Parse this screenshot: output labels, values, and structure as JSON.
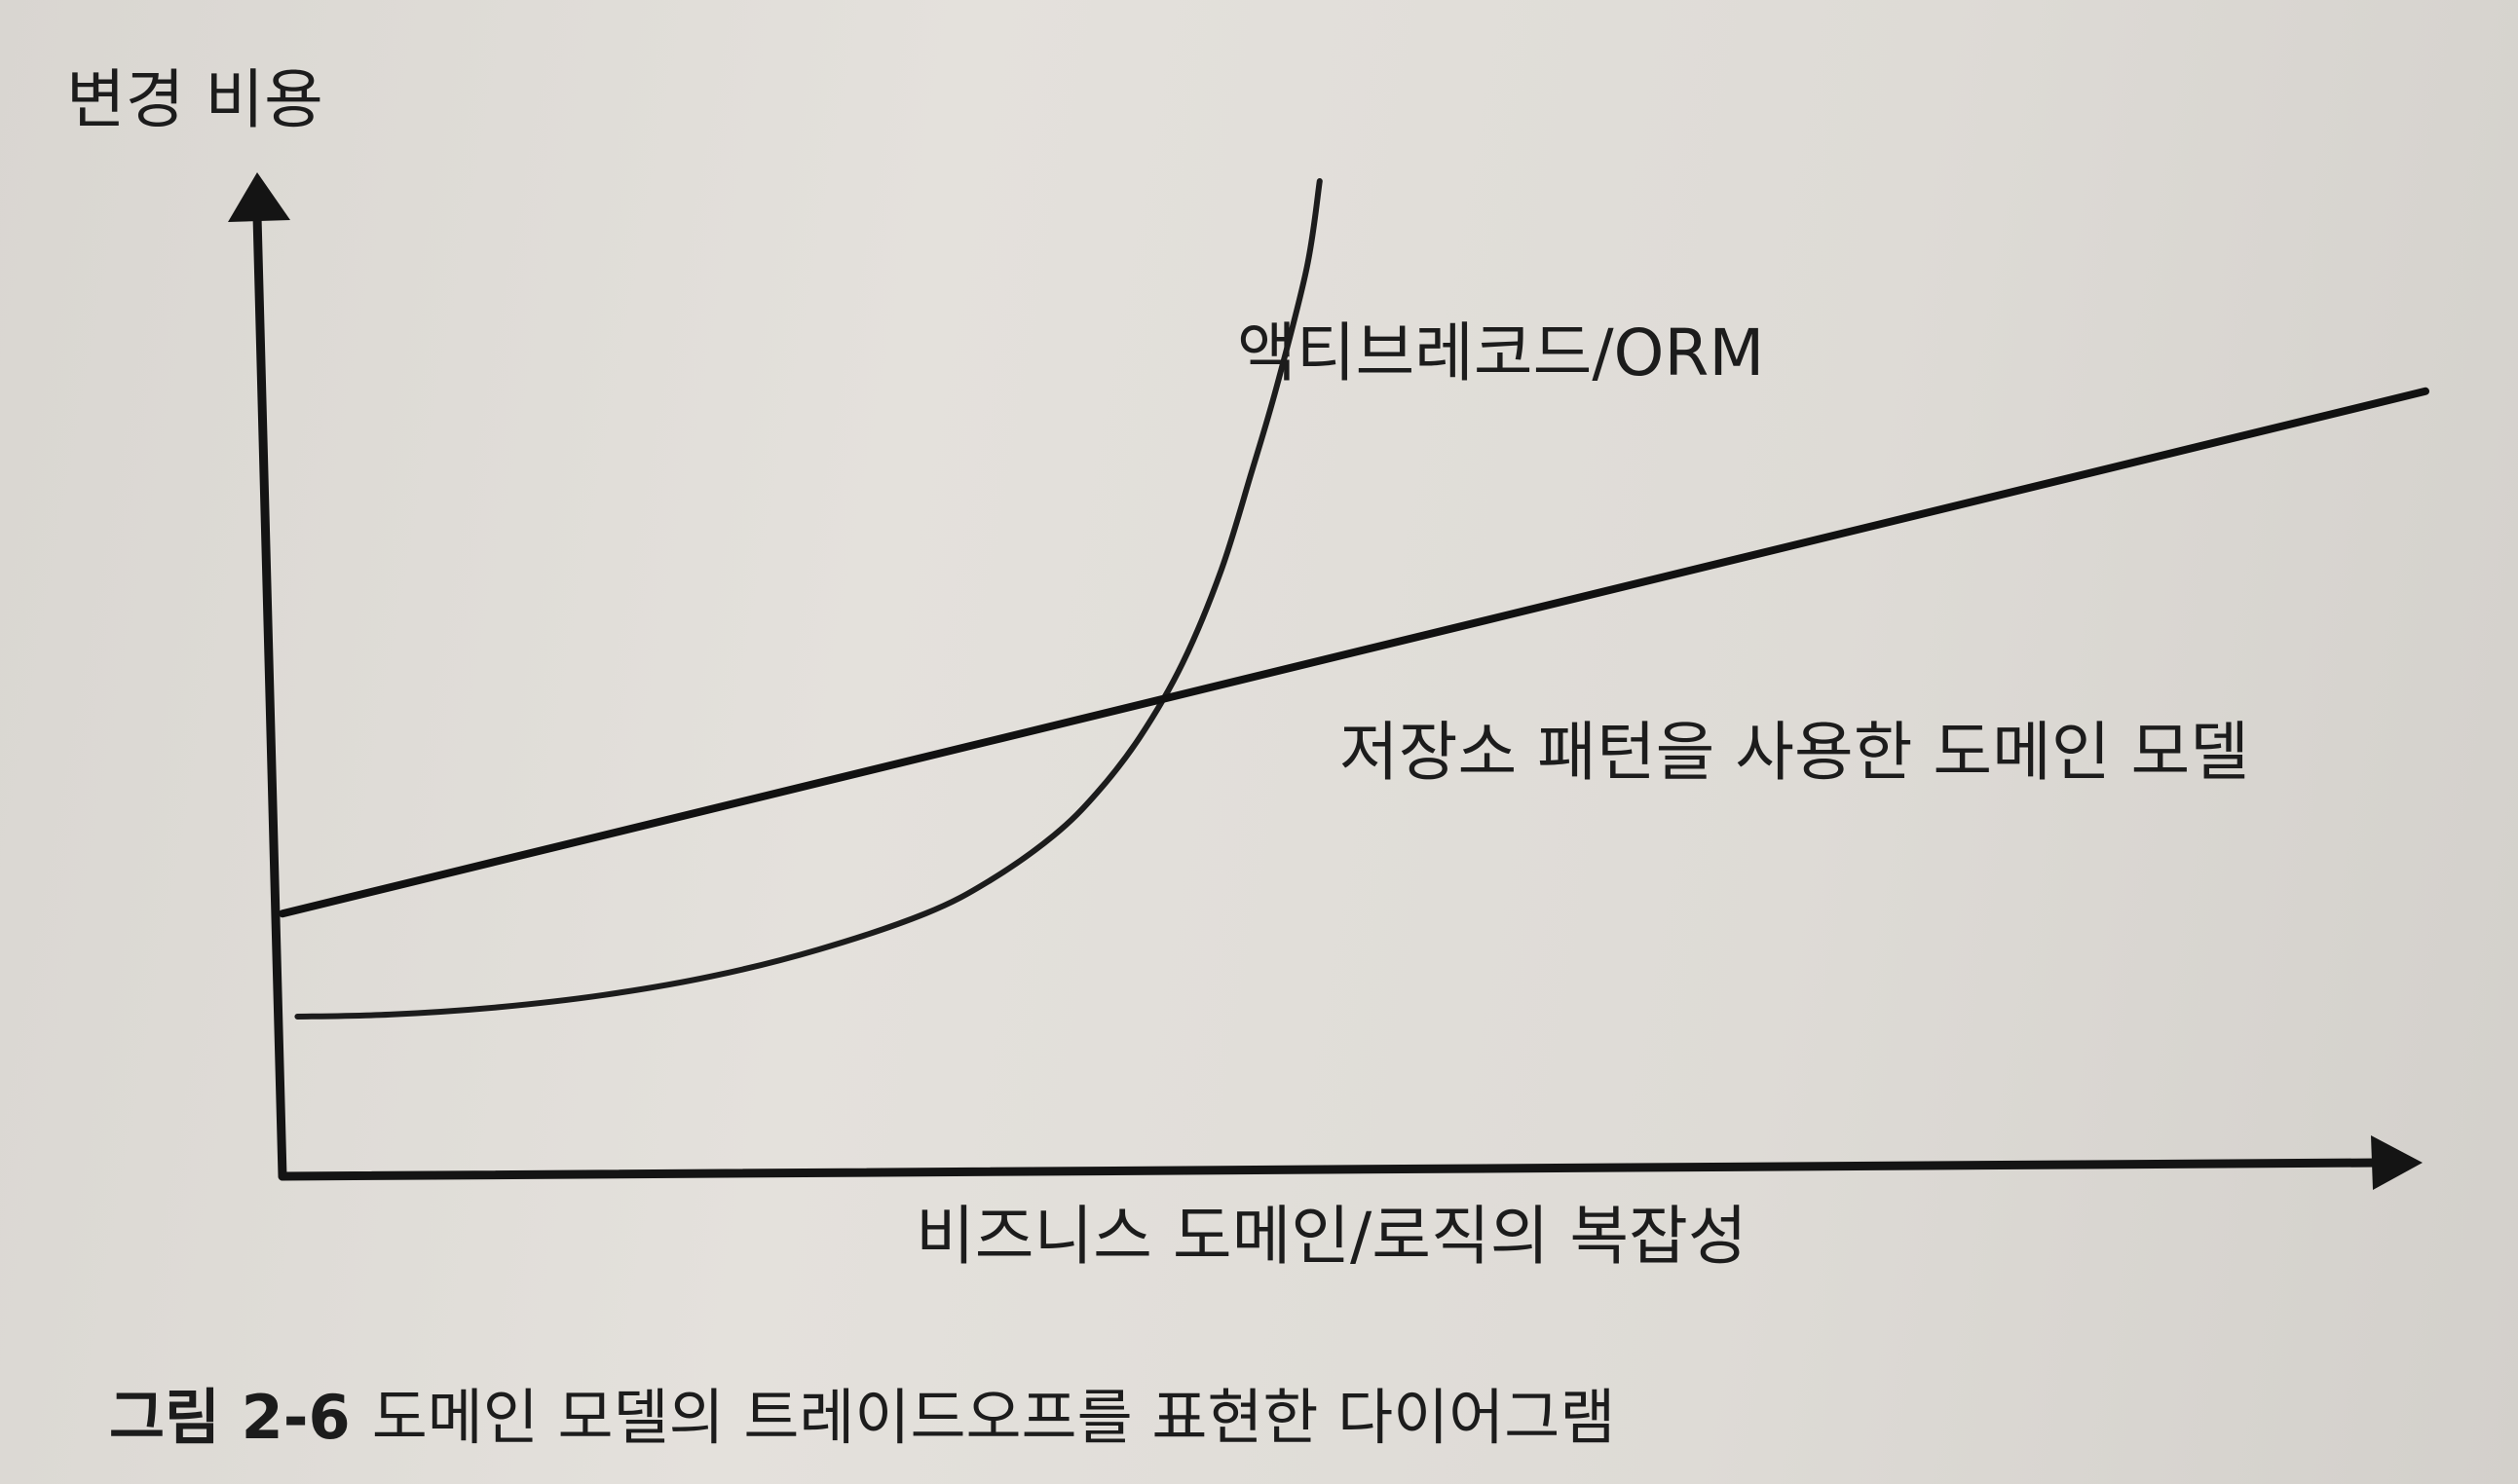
{
  "chart_data": {
    "type": "line",
    "title": "",
    "ylabel": "변경 비용",
    "xlabel": "비즈니스 도메인/로직의 복잡성",
    "x_ticks": "none",
    "y_ticks": "none",
    "grid": false,
    "legend": "none (series labelled directly on chart)",
    "xlim": [
      0,
      100
    ],
    "ylim": [
      0,
      100
    ],
    "series": [
      {
        "name": "액티브레코드/ORM",
        "shape": "curve rising sharply (near-vertical at right end)",
        "color": "#1c1c1c",
        "points": [
          [
            0.7,
            15.5
          ],
          [
            5,
            15.7
          ],
          [
            10,
            16.4
          ],
          [
            15,
            17.6
          ],
          [
            20,
            19.4
          ],
          [
            25,
            22.0
          ],
          [
            30,
            25.5
          ],
          [
            33,
            28.7
          ],
          [
            36,
            33.1
          ],
          [
            38,
            37.2
          ],
          [
            40,
            42.6
          ],
          [
            42,
            49.8
          ],
          [
            43.8,
            58.8
          ],
          [
            45.2,
            68.2
          ],
          [
            46.4,
            76.7
          ],
          [
            47.8,
            88.2
          ],
          [
            48.4,
            96.6
          ]
        ]
      },
      {
        "name": "저장소 패턴을 사용한 도메인 모델",
        "shape": "straight line with gentle upward slope",
        "color": "#111111",
        "points": [
          [
            0,
            25.5
          ],
          [
            100,
            76.2
          ]
        ]
      }
    ]
  },
  "figure_caption": {
    "number": "그림 2-6",
    "text": "도메인 모델의 트레이드오프를 표현한 다이어그램"
  }
}
